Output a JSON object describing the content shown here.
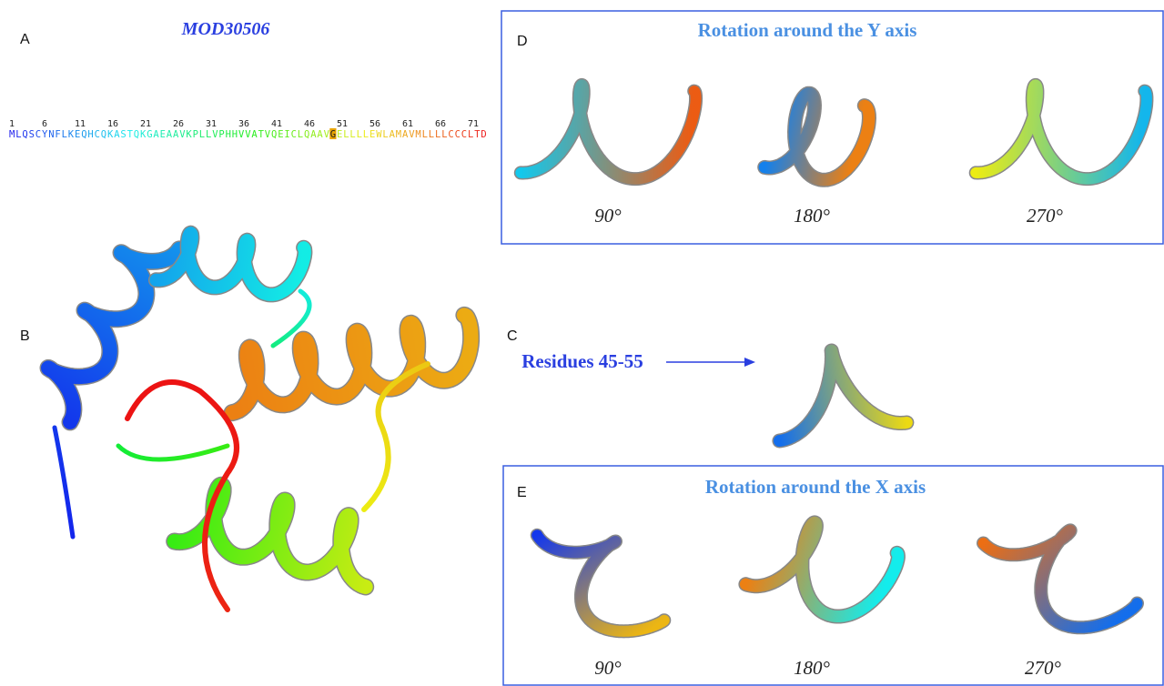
{
  "panel_labels": {
    "a": "A",
    "b": "B",
    "c": "C",
    "d": "D",
    "e": "E"
  },
  "title": "MOD30506",
  "sequence": {
    "positions": [
      1,
      6,
      11,
      16,
      21,
      26,
      31,
      36,
      41,
      46,
      51,
      56,
      61,
      66,
      71
    ],
    "text": "MLQSCYNFLKEQHCQKASTQKGAEAAVKPLLVPHHVVATVQEICLQAAVGELLLLEWLAMAVMLLLLCCCLTD"
  },
  "rotation_y": {
    "title": "Rotation around the Y axis",
    "angles": [
      "90°",
      "180°",
      "270°"
    ]
  },
  "residues_label": "Residues 45-55",
  "rotation_x": {
    "title": "Rotation around the X axis",
    "angles": [
      "90°",
      "180°",
      "270°"
    ]
  }
}
